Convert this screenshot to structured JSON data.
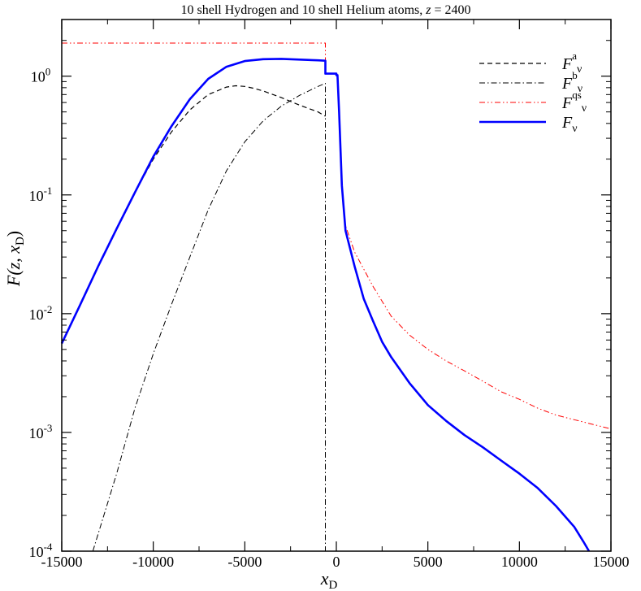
{
  "chart_data": {
    "type": "line",
    "title": "10 shell Hydrogen and 10 shell Helium atoms, z = 2400",
    "title_parts": {
      "prefix": "10 shell Hydrogen and 10 shell Helium atoms, ",
      "var": "z",
      "suffix": " = 2400"
    },
    "xlabel": {
      "main": "x",
      "sub": "D"
    },
    "ylabel": {
      "main": "F(z, x",
      "sub": "D",
      "close": ")"
    },
    "xlim": [
      -15000,
      15000
    ],
    "ylim": [
      0.0001,
      3
    ],
    "yscale": "log",
    "grid": false,
    "legend_position": "top-right",
    "x_ticks": [
      {
        "value": -15000,
        "label": "-15000"
      },
      {
        "value": -10000,
        "label": "-10000"
      },
      {
        "value": -5000,
        "label": "-5000"
      },
      {
        "value": 0,
        "label": "0"
      },
      {
        "value": 5000,
        "label": "5000"
      },
      {
        "value": 10000,
        "label": "10000"
      },
      {
        "value": 15000,
        "label": "15000"
      }
    ],
    "y_ticks": [
      {
        "value": 1,
        "base": "10",
        "exp": "0"
      },
      {
        "value": 0.1,
        "base": "10",
        "exp": "-1"
      },
      {
        "value": 0.01,
        "base": "10",
        "exp": "-2"
      },
      {
        "value": 0.001,
        "base": "10",
        "exp": "-3"
      },
      {
        "value": 0.0001,
        "base": "10",
        "exp": "-4"
      }
    ],
    "series": [
      {
        "name": "F^a_ν",
        "label_main": "F",
        "label_sup": "a",
        "label_sub": "ν",
        "color": "#000000",
        "dash": "dashed",
        "width": 1.2,
        "points": [
          [
            -15000,
            0.0056
          ],
          [
            -13000,
            0.0253
          ],
          [
            -11000,
            0.105
          ],
          [
            -10000,
            0.2
          ],
          [
            -9000,
            0.34
          ],
          [
            -8000,
            0.52
          ],
          [
            -7000,
            0.7
          ],
          [
            -6000,
            0.81
          ],
          [
            -5500,
            0.83
          ],
          [
            -5000,
            0.82
          ],
          [
            -4500,
            0.79
          ],
          [
            -4000,
            0.75
          ],
          [
            -3000,
            0.66
          ],
          [
            -2000,
            0.57
          ],
          [
            -1000,
            0.5
          ],
          [
            -600,
            0.46
          ]
        ]
      },
      {
        "name": "F^b_ν",
        "label_main": "F",
        "label_sup": "b",
        "label_sub": "ν",
        "color": "#000000",
        "dash": "dashdot",
        "width": 1.0,
        "points": [
          [
            -13300,
            0.0001
          ],
          [
            -12000,
            0.00045
          ],
          [
            -11000,
            0.0016
          ],
          [
            -10000,
            0.0046
          ],
          [
            -9000,
            0.012
          ],
          [
            -8000,
            0.03
          ],
          [
            -7000,
            0.075
          ],
          [
            -6000,
            0.16
          ],
          [
            -5000,
            0.28
          ],
          [
            -4000,
            0.42
          ],
          [
            -3000,
            0.56
          ],
          [
            -2000,
            0.69
          ],
          [
            -1000,
            0.82
          ],
          [
            -600,
            0.87
          ],
          [
            -600,
            0.0001
          ]
        ]
      },
      {
        "name": "F^qs_ν",
        "label_main": "F",
        "label_sup": "qs",
        "label_sub": "ν",
        "color": "#ff0000",
        "dash": "dashdotdot",
        "width": 1.0,
        "points": [
          [
            -15000,
            1.9
          ],
          [
            -600,
            1.9
          ],
          [
            -600,
            1.05
          ],
          [
            0,
            1.05
          ],
          [
            0,
            1.02
          ],
          [
            60,
            1.02
          ],
          [
            150,
            0.5
          ],
          [
            300,
            0.12
          ],
          [
            500,
            0.055
          ],
          [
            1000,
            0.033
          ],
          [
            2000,
            0.017
          ],
          [
            3000,
            0.0095
          ],
          [
            4000,
            0.0066
          ],
          [
            5000,
            0.005
          ],
          [
            6000,
            0.004
          ],
          [
            7000,
            0.0033
          ],
          [
            8000,
            0.0027
          ],
          [
            9000,
            0.0022
          ],
          [
            10000,
            0.0019
          ],
          [
            11000,
            0.0016
          ],
          [
            12000,
            0.0014
          ],
          [
            13000,
            0.00128
          ],
          [
            14000,
            0.00117
          ],
          [
            15000,
            0.00107
          ]
        ]
      },
      {
        "name": "F_ν",
        "label_main": "F",
        "label_sup": "",
        "label_sub": "ν",
        "color": "#0000ff",
        "dash": "solid",
        "width": 2.6,
        "points": [
          [
            -15000,
            0.0056
          ],
          [
            -14000,
            0.0118
          ],
          [
            -13000,
            0.0253
          ],
          [
            -12000,
            0.052
          ],
          [
            -11000,
            0.105
          ],
          [
            -10000,
            0.21
          ],
          [
            -9000,
            0.38
          ],
          [
            -8000,
            0.64
          ],
          [
            -7000,
            0.95
          ],
          [
            -6000,
            1.2
          ],
          [
            -5000,
            1.34
          ],
          [
            -4000,
            1.39
          ],
          [
            -3000,
            1.4
          ],
          [
            -2000,
            1.38
          ],
          [
            -1000,
            1.36
          ],
          [
            -600,
            1.35
          ],
          [
            -600,
            1.05
          ],
          [
            0,
            1.05
          ],
          [
            0,
            1.02
          ],
          [
            60,
            1.02
          ],
          [
            150,
            0.5
          ],
          [
            300,
            0.12
          ],
          [
            500,
            0.05
          ],
          [
            1000,
            0.025
          ],
          [
            1500,
            0.0133
          ],
          [
            2000,
            0.0087
          ],
          [
            2500,
            0.0058
          ],
          [
            3000,
            0.0043
          ],
          [
            4000,
            0.0026
          ],
          [
            5000,
            0.0017
          ],
          [
            6000,
            0.00125
          ],
          [
            7000,
            0.00095
          ],
          [
            8000,
            0.00075
          ],
          [
            9000,
            0.00058
          ],
          [
            10000,
            0.00045
          ],
          [
            11000,
            0.00034
          ],
          [
            12000,
            0.00024
          ],
          [
            13000,
            0.00016
          ],
          [
            13500,
            0.00012
          ],
          [
            13800,
            0.0001
          ]
        ]
      }
    ]
  }
}
